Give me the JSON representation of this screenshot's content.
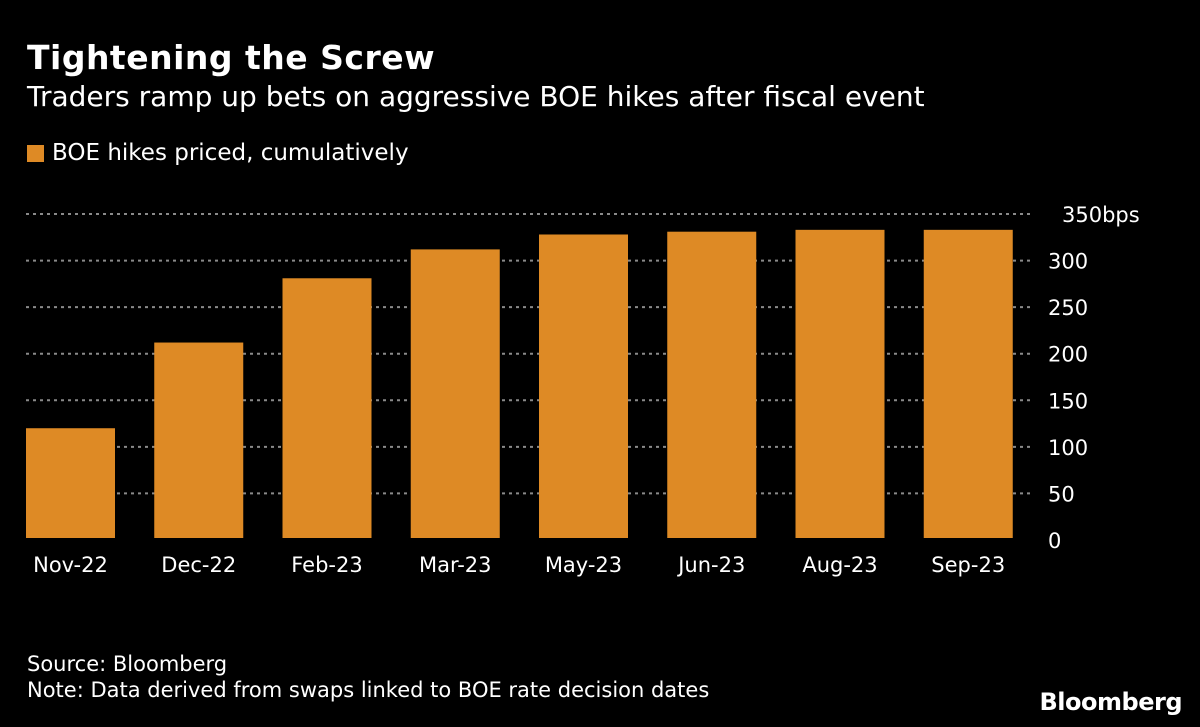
{
  "chart_data": {
    "type": "bar",
    "title": "Tightening the Screw",
    "subtitle": "Traders ramp up bets on aggressive BOE hikes after fiscal event",
    "categories": [
      "Nov-22",
      "Dec-22",
      "Feb-23",
      "Mar-23",
      "May-23",
      "Jun-23",
      "Aug-23",
      "Sep-23"
    ],
    "series": [
      {
        "name": "BOE hikes priced, cumulatively",
        "values": [
          120,
          212,
          281,
          312,
          328,
          331,
          333,
          333
        ],
        "color": "#de8a25"
      }
    ],
    "ylim": [
      0,
      350
    ],
    "yticks": [
      0,
      50,
      100,
      150,
      200,
      250,
      300,
      350
    ],
    "ytick_labels": [
      "0",
      "50",
      "100",
      "150",
      "200",
      "250",
      "300",
      "350bps"
    ],
    "y_axis_side": "right",
    "grid": "horizontal dotted",
    "legend_position": "top-left"
  },
  "footer": {
    "source": "Source: Bloomberg",
    "note": "Note: Data derived from swaps linked to BOE rate decision dates"
  },
  "brand": "Bloomberg"
}
